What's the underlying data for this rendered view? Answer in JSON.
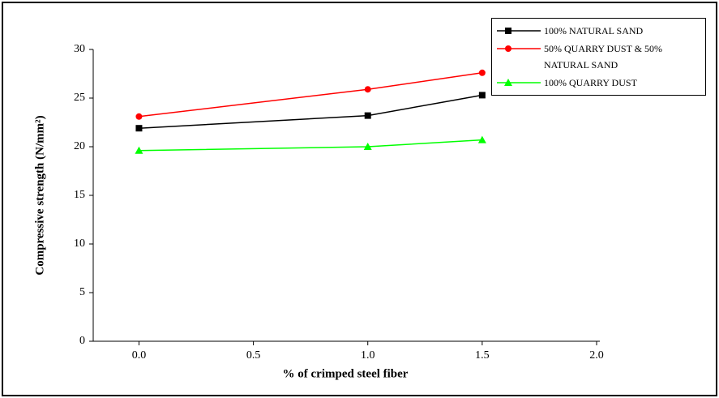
{
  "chart_data": {
    "type": "line",
    "x_label": "% of crimped steel fiber",
    "y_label": "Compressive strength (N/mm²)",
    "x": [
      0.0,
      1.0,
      1.5
    ],
    "series": [
      {
        "name": "100% NATURAL SAND",
        "color": "#000000",
        "marker": "square",
        "values": [
          21.9,
          23.2,
          25.3
        ]
      },
      {
        "name": "50%  QUARRY DUST & 50% NATURAL SAND",
        "color": "#ff0000",
        "marker": "circle",
        "values": [
          23.1,
          25.9,
          27.6
        ]
      },
      {
        "name": "100% QUARRY DUST",
        "color": "#00ff00",
        "marker": "triangle",
        "values": [
          19.6,
          20.0,
          20.7
        ]
      }
    ],
    "xlim": [
      -0.2,
      2.0
    ],
    "xticks": [
      {
        "value": 0,
        "label": "0.0"
      },
      {
        "value": 0.5,
        "label": "0.5"
      },
      {
        "value": 1,
        "label": "1.0"
      },
      {
        "value": 1.5,
        "label": "1.5"
      },
      {
        "value": 2,
        "label": "2.0"
      }
    ],
    "ylim": [
      0,
      30
    ],
    "yticks": [
      0,
      5,
      10,
      15,
      20,
      25,
      30
    ],
    "grid": false,
    "legend": "upper right"
  }
}
